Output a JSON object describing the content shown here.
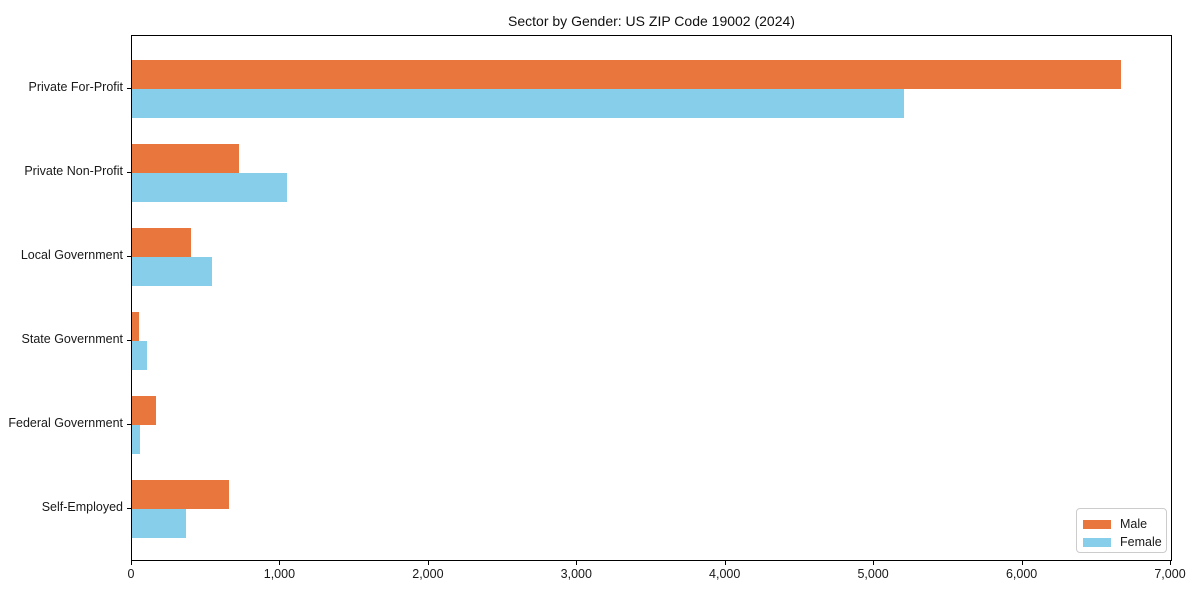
{
  "figure": {
    "background": "#ffffff",
    "axis_color": "#000000",
    "text_color": "#191919",
    "legend_border_color": "#cccccc"
  },
  "chart_data": {
    "type": "bar",
    "orientation": "horizontal",
    "title": "Sector by Gender: US ZIP Code 19002 (2024)",
    "categories": [
      "Private For-Profit",
      "Private Non-Profit",
      "Local Government",
      "State Government",
      "Federal Government",
      "Self-Employed"
    ],
    "series": [
      {
        "name": "Male",
        "color": "#e8763d",
        "values": [
          6660,
          720,
          395,
          50,
          160,
          655
        ]
      },
      {
        "name": "Female",
        "color": "#87ceeb",
        "values": [
          5200,
          1045,
          540,
          100,
          55,
          365
        ]
      }
    ],
    "xlabel": "",
    "ylabel": "",
    "xlim": [
      0,
      7000
    ],
    "x_ticks": [
      0,
      1000,
      2000,
      3000,
      4000,
      5000,
      6000,
      7000
    ],
    "x_tick_labels": [
      "0",
      "1,000",
      "2,000",
      "3,000",
      "4,000",
      "5,000",
      "6,000",
      "7,000"
    ],
    "grid": false,
    "legend": {
      "position": "lower right",
      "entries": [
        "Male",
        "Female"
      ]
    }
  }
}
